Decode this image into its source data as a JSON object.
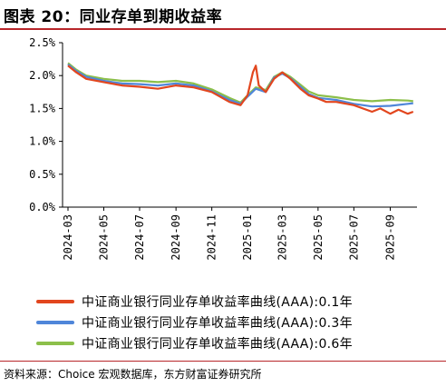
{
  "header": {
    "title": "图表 20：同业存单到期收益率"
  },
  "source": {
    "text": "资料来源：Choice 宏观数据库，东方财富证券研究所"
  },
  "colors": {
    "series1": "#e2461e",
    "series2": "#4f86d9",
    "series3": "#8cbf4a",
    "accent": "#b8262a"
  },
  "chart_data": {
    "type": "line",
    "ylim": [
      0,
      2.5
    ],
    "y_ticks": [
      "0.0%",
      "0.5%",
      "1.0%",
      "1.5%",
      "2.0%",
      "2.5%"
    ],
    "x_ticks": [
      "2024-03",
      "2024-05",
      "2024-07",
      "2024-09",
      "2024-11",
      "2025-01",
      "2025-03",
      "2025-05",
      "2025-07",
      "2025-09"
    ],
    "legend_position": "bottom",
    "series": [
      {
        "name": "中证商业银行同业存单收益率曲线(AAA):0.1年",
        "values": [
          [
            "2024-03",
            2.15
          ],
          [
            "2024-03-15",
            2.05
          ],
          [
            "2024-04",
            1.95
          ],
          [
            "2024-05",
            1.9
          ],
          [
            "2024-06",
            1.85
          ],
          [
            "2024-07",
            1.83
          ],
          [
            "2024-08",
            1.8
          ],
          [
            "2024-09",
            1.85
          ],
          [
            "2024-10",
            1.82
          ],
          [
            "2024-11",
            1.75
          ],
          [
            "2024-12",
            1.6
          ],
          [
            "2024-12-20",
            1.55
          ],
          [
            "2025-01",
            1.7
          ],
          [
            "2025-01-10",
            2.05
          ],
          [
            "2025-01-15",
            2.15
          ],
          [
            "2025-01-20",
            1.85
          ],
          [
            "2025-02",
            1.75
          ],
          [
            "2025-02-15",
            1.95
          ],
          [
            "2025-03",
            2.05
          ],
          [
            "2025-03-15",
            1.95
          ],
          [
            "2025-04",
            1.8
          ],
          [
            "2025-04-15",
            1.7
          ],
          [
            "2025-05",
            1.65
          ],
          [
            "2025-05-15",
            1.6
          ],
          [
            "2025-06",
            1.6
          ],
          [
            "2025-07",
            1.55
          ],
          [
            "2025-08",
            1.45
          ],
          [
            "2025-08-15",
            1.5
          ],
          [
            "2025-09",
            1.42
          ],
          [
            "2025-09-15",
            1.48
          ],
          [
            "2025-10",
            1.42
          ],
          [
            "2025-10-10",
            1.45
          ]
        ]
      },
      {
        "name": "中证商业银行同业存单收益率曲线(AAA):0.3年",
        "values": [
          [
            "2024-03",
            2.17
          ],
          [
            "2024-03-15",
            2.07
          ],
          [
            "2024-04",
            1.98
          ],
          [
            "2024-05",
            1.92
          ],
          [
            "2024-06",
            1.88
          ],
          [
            "2024-07",
            1.87
          ],
          [
            "2024-08",
            1.85
          ],
          [
            "2024-09",
            1.88
          ],
          [
            "2024-10",
            1.85
          ],
          [
            "2024-11",
            1.76
          ],
          [
            "2024-12",
            1.63
          ],
          [
            "2024-12-20",
            1.57
          ],
          [
            "2025-01",
            1.68
          ],
          [
            "2025-01-15",
            1.8
          ],
          [
            "2025-02",
            1.75
          ],
          [
            "2025-02-15",
            1.97
          ],
          [
            "2025-03",
            2.03
          ],
          [
            "2025-03-15",
            1.96
          ],
          [
            "2025-04",
            1.83
          ],
          [
            "2025-04-15",
            1.72
          ],
          [
            "2025-05",
            1.66
          ],
          [
            "2025-06",
            1.63
          ],
          [
            "2025-07",
            1.57
          ],
          [
            "2025-08",
            1.53
          ],
          [
            "2025-09",
            1.54
          ],
          [
            "2025-10",
            1.57
          ],
          [
            "2025-10-10",
            1.58
          ]
        ]
      },
      {
        "name": "中证商业银行同业存单收益率曲线(AAA):0.6年",
        "values": [
          [
            "2024-03",
            2.19
          ],
          [
            "2024-03-15",
            2.09
          ],
          [
            "2024-04",
            2.0
          ],
          [
            "2024-05",
            1.95
          ],
          [
            "2024-06",
            1.92
          ],
          [
            "2024-07",
            1.92
          ],
          [
            "2024-08",
            1.9
          ],
          [
            "2024-09",
            1.92
          ],
          [
            "2024-10",
            1.88
          ],
          [
            "2024-11",
            1.79
          ],
          [
            "2024-12",
            1.66
          ],
          [
            "2024-12-20",
            1.59
          ],
          [
            "2025-01",
            1.7
          ],
          [
            "2025-01-15",
            1.82
          ],
          [
            "2025-02",
            1.78
          ],
          [
            "2025-02-15",
            1.98
          ],
          [
            "2025-03",
            2.05
          ],
          [
            "2025-03-15",
            1.98
          ],
          [
            "2025-04",
            1.86
          ],
          [
            "2025-04-15",
            1.76
          ],
          [
            "2025-05",
            1.7
          ],
          [
            "2025-06",
            1.67
          ],
          [
            "2025-07",
            1.63
          ],
          [
            "2025-08",
            1.61
          ],
          [
            "2025-09",
            1.63
          ],
          [
            "2025-10",
            1.62
          ],
          [
            "2025-10-10",
            1.61
          ]
        ]
      }
    ]
  }
}
